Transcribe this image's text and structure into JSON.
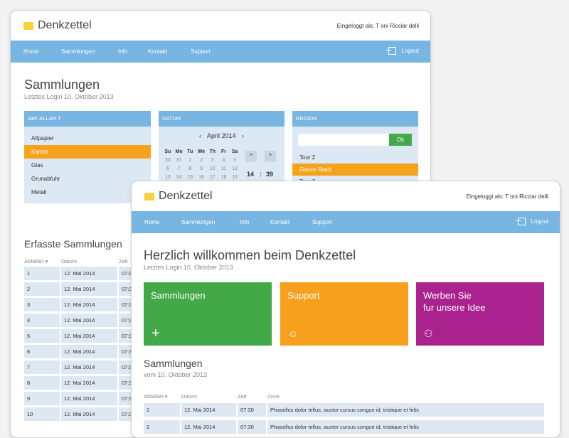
{
  "app": {
    "logo": "Denkzettel",
    "login_label": "Eingeloggt als: T oni Ricciar delli"
  },
  "nav": {
    "items": [
      "Home",
      "Sammlungen",
      "Info",
      "Kontakt",
      "Support"
    ],
    "logout": "Logout"
  },
  "back": {
    "title": "Sammlungen",
    "subtitle": "Letztes Login 10. Oktober 2013",
    "abfallart": {
      "header": "ABF ALLAR T",
      "items": [
        "Altpapier",
        "Karton",
        "Glas",
        "Grunabfuhr",
        "Metall"
      ],
      "selected": 1
    },
    "datum": {
      "header": "DATUM",
      "month": "April 2014",
      "days": [
        "Su",
        "Mo",
        "Tu",
        "We",
        "Th",
        "Fr",
        "Sa"
      ],
      "weeks": [
        [
          "30",
          "31",
          "1",
          "2",
          "3",
          "4",
          "5"
        ],
        [
          "6",
          "7",
          "8",
          "9",
          "10",
          "11",
          "12"
        ],
        [
          "13",
          "14",
          "15",
          "16",
          "17",
          "18",
          "19"
        ]
      ],
      "hour": "14",
      "sep": ":",
      "minute": "39"
    },
    "region": {
      "header": "REGION",
      "ok": "Ok",
      "items": [
        "Tour 2",
        "Ganze Stadt",
        "Tour 3"
      ],
      "selected": 1
    },
    "erfasste": {
      "title": "Erfasste Sammlungen",
      "headers": [
        "Abfallart",
        "Datum",
        "Zeit"
      ],
      "rows": [
        [
          "1",
          "12. Mai 2014",
          "07:3"
        ],
        [
          "2",
          "12. Mai 2014",
          "07:3"
        ],
        [
          "3",
          "12. Mai 2014",
          "07:3"
        ],
        [
          "4",
          "12. Mai 2014",
          "07:3"
        ],
        [
          "5",
          "12. Mai 2014",
          "07:3"
        ],
        [
          "6",
          "12. Mai 2014",
          "07:3"
        ],
        [
          "7",
          "12. Mai 2014",
          "07:3"
        ],
        [
          "8",
          "12. Mai 2014",
          "07:3"
        ],
        [
          "9",
          "12. Mai 2014",
          "07:3"
        ],
        [
          "10",
          "12. Mai 2014",
          "07:3"
        ]
      ]
    }
  },
  "front": {
    "title": "Herzlich willkommen beim Denkzettel",
    "subtitle": "Letztes Login 10. Oktober 2013",
    "tiles": [
      {
        "label": "Sammlungen",
        "color": "#43a847",
        "icon": "plus-icon"
      },
      {
        "label": "Support",
        "color": "#f6a01e",
        "icon": "support-icon"
      },
      {
        "label": "Werben Sie\nfur unsere Idee",
        "color": "#a9228e",
        "icon": "people-icon"
      }
    ],
    "sammlungen": {
      "title": "Sammlungen",
      "subtitle": "vom 10. Oktober 2013",
      "headers": [
        "Abfallart",
        "Datum",
        "Zeit",
        "Zone"
      ],
      "rows": [
        [
          "1",
          "12. Mai 2014",
          "07:30",
          "Phasellus dolor tellus, auctor cursus congue id, tristique et felis"
        ],
        [
          "2",
          "12. Mai 2014",
          "07:30",
          "Phasellus dolor tellus, auctor cursus congue id, tristique et felis"
        ]
      ]
    }
  }
}
